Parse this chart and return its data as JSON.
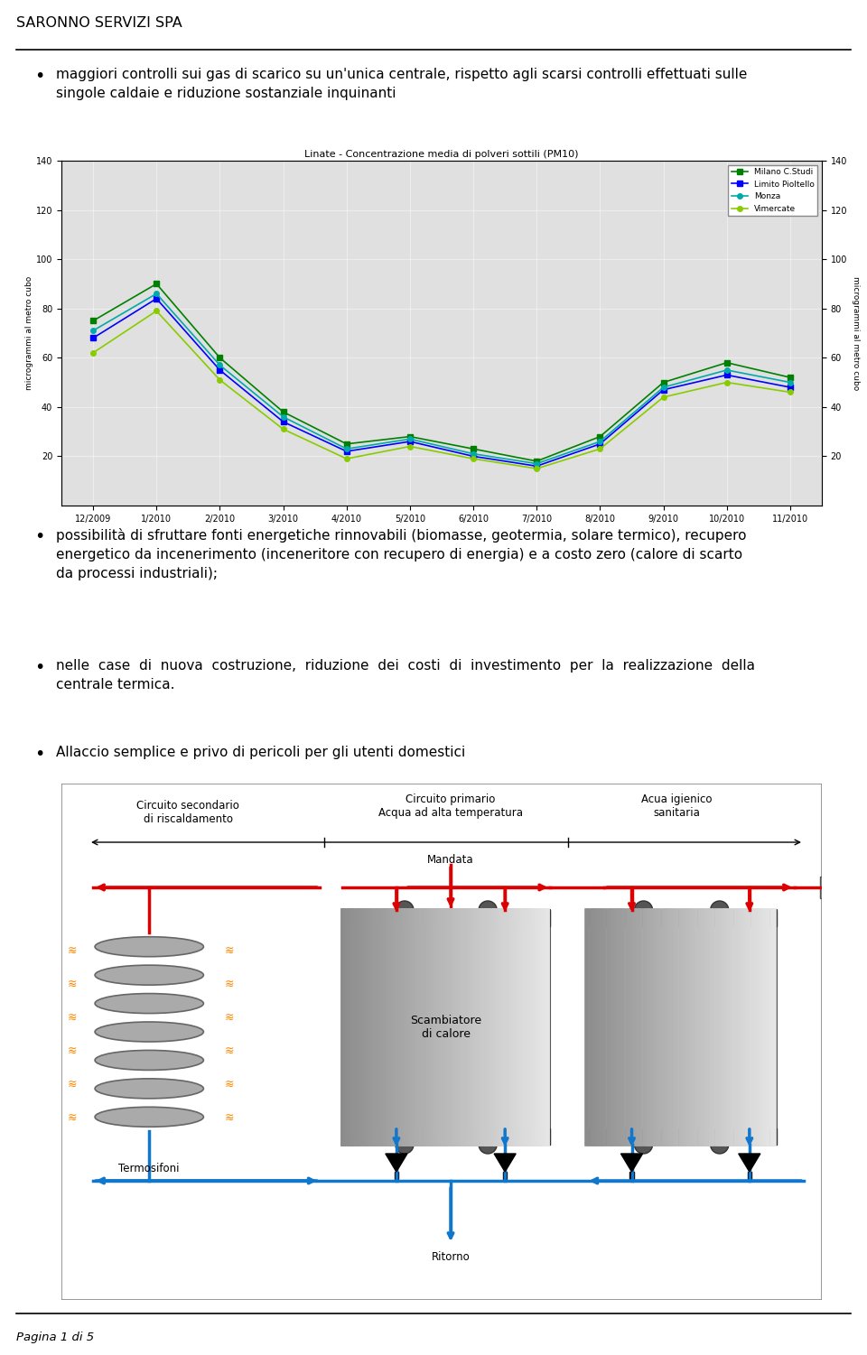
{
  "header_text": "SARONNO SERVIZI SPA",
  "footer_text": "Pagina 1 di 5",
  "bullet1_text": "maggiori controlli sui gas di scarico su un'unica centrale, rispetto agli scarsi controlli effettuati sulle\nsingole caldaie e riduzione sostanziale inquinanti",
  "bullet2_text": "possibilità di sfruttare fonti energetiche rinnovabili (biomasse, geotermia, solare termico), recupero\nenergetico da incenerimento (inceneritore con recupero di energia) e a costo zero (calore di scarto\nda processi industriali);",
  "bullet3_text": "nelle  case  di  nuova  costruzione,  riduzione  dei  costi  di  investimento  per  la  realizzazione  della\ncentrale termica.",
  "bullet4_text": "Allaccio semplice e privo di pericoli per gli utenti domestici",
  "chart_title": "Linate - Concentrazione media di polveri sottili (PM10)",
  "chart_xlabel_values": [
    "12/2009",
    "1/2010",
    "2/2010",
    "3/2010",
    "4/2010",
    "5/2010",
    "6/2010",
    "7/2010",
    "8/2010",
    "9/2010",
    "10/2010",
    "11/2010"
  ],
  "chart_ylabel": "microgrammi al metro cubo",
  "chart_ylim": [
    0,
    140
  ],
  "chart_yticks": [
    20,
    40,
    60,
    80,
    100,
    120,
    140
  ],
  "series": [
    {
      "label": "Milano C.Studi",
      "color": "#008000",
      "marker": "s",
      "values": [
        75,
        90,
        60,
        38,
        25,
        28,
        23,
        18,
        28,
        50,
        58,
        52
      ]
    },
    {
      "label": "Limito Pioltello",
      "color": "#0000ff",
      "marker": "s",
      "values": [
        68,
        84,
        55,
        34,
        22,
        26,
        20,
        16,
        25,
        47,
        53,
        48
      ]
    },
    {
      "label": "Monza",
      "color": "#00aaaa",
      "marker": "o",
      "values": [
        71,
        86,
        57,
        36,
        23,
        27,
        21,
        17,
        26,
        48,
        55,
        50
      ]
    },
    {
      "label": "Vimercate",
      "color": "#88cc00",
      "marker": "o",
      "values": [
        62,
        79,
        51,
        31,
        19,
        24,
        19,
        15,
        23,
        44,
        50,
        46
      ]
    }
  ],
  "bg_color": "#ffffff",
  "text_color": "#000000",
  "body_font_size": 11.0,
  "header_font_size": 11.5,
  "diag_labels": {
    "circuit_sec": "Circuito secondario\ndi riscaldamento",
    "circuit_pri": "Circuito primario\nAcqua ad alta temperatura",
    "acua": "Acua igienico\nsanitaria",
    "mandata": "Mandata",
    "termosifoni": "Termosifoni",
    "scambiatore": "Scambiatore\ndi calore",
    "ritorno": "Ritorno"
  },
  "red": "#dd0000",
  "blue": "#1177cc"
}
